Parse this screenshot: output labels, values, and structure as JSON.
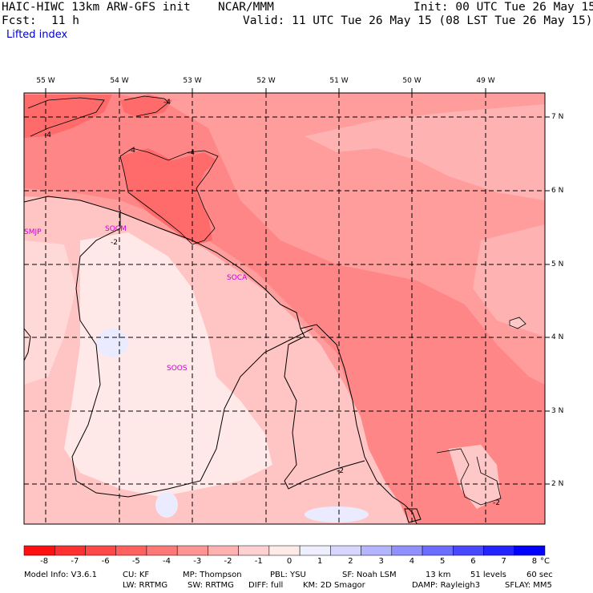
{
  "header": {
    "model": "HAIC-HIWC 13km ARW-GFS init",
    "org": "NCAR/MMM",
    "init": "Init: 00 UTC Tue 26 May 15",
    "fcst_label": "Fcst:",
    "fcst_value": "11 h",
    "valid": "Valid: 11 UTC Tue 26 May 15 (08 LST Tue 26 May 15)",
    "field": "Lifted index"
  },
  "map": {
    "lon_labels": [
      "55 W",
      "54 W",
      "53 W",
      "52 W",
      "51 W",
      "50 W",
      "49 W"
    ],
    "lat_labels": [
      "7 N",
      "6 N",
      "5 N",
      "4 N",
      "3 N",
      "2 N"
    ],
    "stations": [
      "SMJP",
      "SOCM",
      "SOCA",
      "SOOS"
    ],
    "contour_labels": [
      "-4",
      "-4",
      "-4",
      "-4",
      "-2",
      "-2",
      "-2"
    ]
  },
  "colorbar": {
    "labels": [
      "-8",
      "-7",
      "-6",
      "-5",
      "-4",
      "-3",
      "-2",
      "-1",
      "0",
      "1",
      "2",
      "3",
      "4",
      "5",
      "6",
      "7",
      "8"
    ],
    "unit": "°C",
    "colors": [
      "#ff1010",
      "#ff3030",
      "#ff4848",
      "#ff6060",
      "#ff7878",
      "#ff9494",
      "#ffb0b0",
      "#ffd0d0",
      "#ffeaea",
      "#eeeeff",
      "#d6d6ff",
      "#b4b4ff",
      "#9090ff",
      "#6c6cff",
      "#4848ff",
      "#2424ff",
      "#0000ff"
    ]
  },
  "footer": {
    "line1": [
      "Model Info: V3.6.1",
      "CU: KF",
      "MP: Thompson",
      "PBL: YSU",
      "SF: Noah LSM",
      "13 km",
      "51 levels",
      "60 sec"
    ],
    "line2": [
      "LW: RRTMG",
      "SW: RRTMG",
      "DIFF: full",
      "KM: 2D Smagor",
      "DAMP: Rayleigh3",
      "SFLAY: MM5"
    ]
  }
}
